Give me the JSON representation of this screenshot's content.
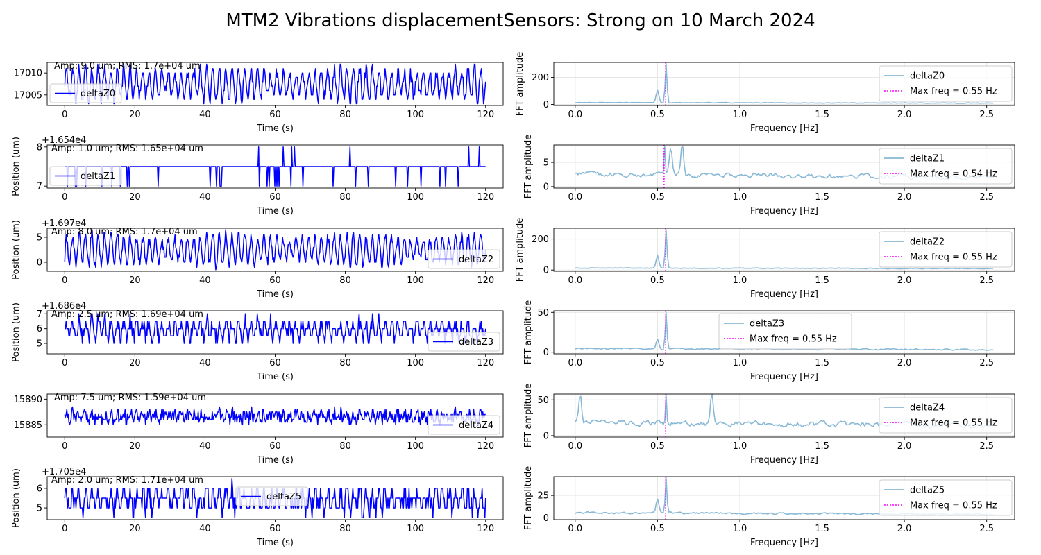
{
  "figure": {
    "title": "MTM2 Vibrations displacementSensors: Strong on 10 March 2024"
  },
  "colors": {
    "time_series": "#0000ff",
    "fft": "#88b8d6",
    "max_freq_line": "#ff00ff",
    "grid": "#e6e6e6"
  },
  "chart_data": [
    {
      "type": "line",
      "panel": "time",
      "sensor": "deltaZ0",
      "annotation": "Amp: 9.0 um; RMS: 1.7e+04 um",
      "xlabel": "Time (s)",
      "ylabel": "",
      "offset_text": "",
      "xlim": [
        -5,
        125
      ],
      "ylim": [
        17002.6,
        17012.4
      ],
      "xticks": [
        0,
        20,
        40,
        60,
        80,
        100,
        120
      ],
      "xtick_labels": [
        "0",
        "20",
        "40",
        "60",
        "80",
        "100",
        "120"
      ],
      "yticks": [
        17005,
        17010
      ],
      "ytick_labels": [
        "17005",
        "17010"
      ],
      "legend": {
        "label": "deltaZ0",
        "loc": "left"
      },
      "signal": {
        "kind": "sine",
        "center": 17007.5,
        "amp": 3.0,
        "freq": 0.55,
        "noise": 1.3,
        "min": 17003,
        "max": 17012,
        "quant": 1,
        "n": 600
      },
      "series": [
        {
          "name": "deltaZ0"
        }
      ]
    },
    {
      "type": "line",
      "panel": "fft",
      "sensor": "deltaZ0",
      "xlabel": "Frequency [Hz]",
      "ylabel": "FFT amplitude",
      "xlim": [
        -0.13,
        2.67
      ],
      "ylim": [
        -8,
        310
      ],
      "xticks": [
        0,
        0.5,
        1,
        1.5,
        2,
        2.5
      ],
      "xtick_labels": [
        "0.0",
        "0.5",
        "1.0",
        "1.5",
        "2.0",
        "2.5"
      ],
      "yticks": [
        0,
        200
      ],
      "ytick_labels": [
        "0",
        "200"
      ],
      "legend": {
        "labels": [
          "deltaZ0",
          "Max freq = 0.55 Hz"
        ],
        "loc": "right"
      },
      "max_freq": 0.55,
      "spectrum": {
        "baseline": 12,
        "noise": 8,
        "peak_freq": 0.55,
        "peak": 300,
        "secondary": [
          [
            0.5,
            90
          ]
        ],
        "n": 300
      },
      "series": [
        {
          "name": "deltaZ0"
        }
      ]
    },
    {
      "type": "line",
      "panel": "time",
      "sensor": "deltaZ1",
      "annotation": "Amp: 1.0 um; RMS: 1.65e+04 um",
      "xlabel": "Time (s)",
      "ylabel": "Position (um)",
      "offset_text": "+1.654e4",
      "xlim": [
        -5,
        125
      ],
      "ylim": [
        6.95,
        8.05
      ],
      "xticks": [
        0,
        20,
        40,
        60,
        80,
        100,
        120
      ],
      "xtick_labels": [
        "0",
        "20",
        "40",
        "60",
        "80",
        "100",
        "120"
      ],
      "yticks": [
        7,
        8
      ],
      "ytick_labels": [
        "7",
        "8"
      ],
      "legend": {
        "label": "deltaZ1",
        "loc": "left"
      },
      "signal": {
        "kind": "steps",
        "center": 7.5,
        "low": 7,
        "high": 8,
        "p_low": 0.05,
        "p_high": 0.02,
        "n": 600
      },
      "series": [
        {
          "name": "deltaZ1"
        }
      ]
    },
    {
      "type": "line",
      "panel": "fft",
      "sensor": "deltaZ1",
      "xlabel": "Frequency [Hz]",
      "ylabel": "FFT amplitude",
      "xlim": [
        -0.13,
        2.67
      ],
      "ylim": [
        -0.3,
        8.6
      ],
      "xticks": [
        0,
        0.5,
        1,
        1.5,
        2,
        2.5
      ],
      "xtick_labels": [
        "0.0",
        "0.5",
        "1.0",
        "1.5",
        "2.0",
        "2.5"
      ],
      "yticks": [
        0,
        5
      ],
      "ytick_labels": [
        "0",
        "5"
      ],
      "legend": {
        "labels": [
          "deltaZ1",
          "Max freq = 0.54 Hz"
        ],
        "loc": "right"
      },
      "max_freq": 0.54,
      "spectrum": {
        "baseline": 2.3,
        "noise": 1.6,
        "peak_freq": 0.54,
        "peak": 8.3,
        "secondary": [
          [
            0.65,
            6.5
          ],
          [
            0.58,
            5.5
          ]
        ],
        "n": 300
      },
      "series": [
        {
          "name": "deltaZ1"
        }
      ]
    },
    {
      "type": "line",
      "panel": "time",
      "sensor": "deltaZ2",
      "annotation": "Amp: 8.0 um; RMS: 1.7e+04 um",
      "xlabel": "Time (s)",
      "ylabel": "Position (um)",
      "offset_text": "+1.697e4",
      "xlim": [
        -5,
        125
      ],
      "ylim": [
        -1.8,
        6.8
      ],
      "xticks": [
        0,
        20,
        40,
        60,
        80,
        100,
        120
      ],
      "xtick_labels": [
        "0",
        "20",
        "40",
        "60",
        "80",
        "100",
        "120"
      ],
      "yticks": [
        0,
        5
      ],
      "ytick_labels": [
        "0",
        "5"
      ],
      "legend": {
        "label": "deltaZ2",
        "loc": "right"
      },
      "signal": {
        "kind": "sine",
        "center": 2.5,
        "amp": 2.6,
        "freq": 0.55,
        "noise": 0.9,
        "min": -1.5,
        "max": 6.5,
        "quant": 0.5,
        "n": 600,
        "start": 0
      },
      "series": [
        {
          "name": "deltaZ2"
        }
      ]
    },
    {
      "type": "line",
      "panel": "fft",
      "sensor": "deltaZ2",
      "xlabel": "Frequency [Hz]",
      "ylabel": "FFT amplitude",
      "xlim": [
        -0.13,
        2.67
      ],
      "ylim": [
        -8,
        270
      ],
      "xticks": [
        0,
        0.5,
        1,
        1.5,
        2,
        2.5
      ],
      "xtick_labels": [
        "0.0",
        "0.5",
        "1.0",
        "1.5",
        "2.0",
        "2.5"
      ],
      "yticks": [
        0,
        200
      ],
      "ytick_labels": [
        "0",
        "200"
      ],
      "legend": {
        "labels": [
          "deltaZ2",
          "Max freq = 0.55 Hz"
        ],
        "loc": "right"
      },
      "max_freq": 0.55,
      "spectrum": {
        "baseline": 12,
        "noise": 7,
        "peak_freq": 0.55,
        "peak": 260,
        "secondary": [
          [
            0.5,
            80
          ]
        ],
        "n": 300
      },
      "series": [
        {
          "name": "deltaZ2"
        }
      ]
    },
    {
      "type": "line",
      "panel": "time",
      "sensor": "deltaZ3",
      "annotation": "Amp: 2.5 um; RMS: 1.69e+04 um",
      "xlabel": "Time (s)",
      "ylabel": "Position (um)",
      "offset_text": "+1.686e4",
      "xlim": [
        -5,
        125
      ],
      "ylim": [
        4.3,
        7.2
      ],
      "xticks": [
        0,
        20,
        40,
        60,
        80,
        100,
        120
      ],
      "xtick_labels": [
        "0",
        "20",
        "40",
        "60",
        "80",
        "100",
        "120"
      ],
      "yticks": [
        5,
        6,
        7
      ],
      "ytick_labels": [
        "5",
        "6",
        "7"
      ],
      "legend": {
        "label": "deltaZ3",
        "loc": "right"
      },
      "signal": {
        "kind": "sine",
        "center": 5.9,
        "amp": 0.5,
        "freq": 0.55,
        "noise": 0.45,
        "min": 4.5,
        "max": 7.0,
        "quant": 0.5,
        "n": 600
      },
      "series": [
        {
          "name": "deltaZ3"
        }
      ]
    },
    {
      "type": "line",
      "panel": "fft",
      "sensor": "deltaZ3",
      "xlabel": "Frequency [Hz]",
      "ylabel": "FFT amplitude",
      "xlim": [
        -0.13,
        2.67
      ],
      "ylim": [
        -2,
        52
      ],
      "xticks": [
        0,
        0.5,
        1,
        1.5,
        2,
        2.5
      ],
      "xtick_labels": [
        "0.0",
        "0.5",
        "1.0",
        "1.5",
        "2.0",
        "2.5"
      ],
      "yticks": [
        0,
        50
      ],
      "ytick_labels": [
        "0",
        "50"
      ],
      "legend": {
        "labels": [
          "deltaZ3",
          "Max freq = 0.55 Hz"
        ],
        "loc": "center"
      },
      "max_freq": 0.55,
      "spectrum": {
        "baseline": 4,
        "noise": 3,
        "peak_freq": 0.55,
        "peak": 50,
        "secondary": [
          [
            0.5,
            13
          ]
        ],
        "n": 300
      },
      "series": [
        {
          "name": "deltaZ3"
        }
      ]
    },
    {
      "type": "line",
      "panel": "time",
      "sensor": "deltaZ4",
      "annotation": "Amp: 7.5 um; RMS: 1.59e+04 um",
      "xlabel": "Time (s)",
      "ylabel": "",
      "offset_text": "",
      "xlim": [
        -5,
        125
      ],
      "ylim": [
        15882.6,
        15891.0
      ],
      "xticks": [
        0,
        20,
        40,
        60,
        80,
        100,
        120
      ],
      "xtick_labels": [
        "0",
        "20",
        "40",
        "60",
        "80",
        "100",
        "120"
      ],
      "yticks": [
        15885,
        15890
      ],
      "ytick_labels": [
        "15885",
        "15890"
      ],
      "legend": {
        "label": "deltaZ4",
        "loc": "right"
      },
      "signal": {
        "kind": "sine",
        "center": 15886.6,
        "amp": 0.6,
        "freq": 0.55,
        "noise": 1.2,
        "min": 15883,
        "max": 15890.5,
        "quant": 0.5,
        "n": 600
      },
      "series": [
        {
          "name": "deltaZ4"
        }
      ]
    },
    {
      "type": "line",
      "panel": "fft",
      "sensor": "deltaZ4",
      "xlabel": "Frequency [Hz]",
      "ylabel": "FFT amplitude",
      "xlim": [
        -0.13,
        2.67
      ],
      "ylim": [
        -2,
        58
      ],
      "xticks": [
        0,
        0.5,
        1,
        1.5,
        2,
        2.5
      ],
      "xtick_labels": [
        "0.0",
        "0.5",
        "1.0",
        "1.5",
        "2.0",
        "2.5"
      ],
      "yticks": [
        0,
        50
      ],
      "ytick_labels": [
        "0",
        "50"
      ],
      "legend": {
        "labels": [
          "deltaZ4",
          "Max freq = 0.55 Hz"
        ],
        "loc": "right"
      },
      "max_freq": 0.55,
      "spectrum": {
        "baseline": 16,
        "noise": 14,
        "peak_freq": 0.55,
        "peak": 57,
        "secondary": [
          [
            0.83,
            42
          ],
          [
            0.03,
            40
          ]
        ],
        "n": 300
      },
      "series": [
        {
          "name": "deltaZ4"
        }
      ]
    },
    {
      "type": "line",
      "panel": "time",
      "sensor": "deltaZ5",
      "annotation": "Amp: 2.0 um; RMS: 1.71e+04 um",
      "xlabel": "Time (s)",
      "ylabel": "Position (um)",
      "offset_text": "+1.705e4",
      "xlim": [
        -5,
        125
      ],
      "ylim": [
        4.4,
        6.6
      ],
      "xticks": [
        0,
        20,
        40,
        60,
        80,
        100,
        120
      ],
      "xtick_labels": [
        "0",
        "20",
        "40",
        "60",
        "80",
        "100",
        "120"
      ],
      "yticks": [
        5,
        6
      ],
      "ytick_labels": [
        "5",
        "6"
      ],
      "legend": {
        "label": "deltaZ5",
        "loc": "center"
      },
      "signal": {
        "kind": "sine",
        "center": 5.4,
        "amp": 0.4,
        "freq": 0.55,
        "noise": 0.45,
        "min": 4.5,
        "max": 6.5,
        "quant": 0.5,
        "n": 600
      },
      "series": [
        {
          "name": "deltaZ5"
        }
      ]
    },
    {
      "type": "line",
      "panel": "fft",
      "sensor": "deltaZ5",
      "xlabel": "Frequency [Hz]",
      "ylabel": "FFT amplitude",
      "xlim": [
        -0.13,
        2.67
      ],
      "ylim": [
        -2,
        46
      ],
      "xticks": [
        0,
        0.5,
        1,
        1.5,
        2,
        2.5
      ],
      "xtick_labels": [
        "0.0",
        "0.5",
        "1.0",
        "1.5",
        "2.0",
        "2.5"
      ],
      "yticks": [
        0,
        25
      ],
      "ytick_labels": [
        "0",
        "25"
      ],
      "legend": {
        "labels": [
          "deltaZ5",
          "Max freq = 0.55 Hz"
        ],
        "loc": "right"
      },
      "max_freq": 0.55,
      "spectrum": {
        "baseline": 5,
        "noise": 3.5,
        "peak_freq": 0.55,
        "peak": 45,
        "secondary": [
          [
            0.5,
            15
          ]
        ],
        "n": 300
      },
      "series": [
        {
          "name": "deltaZ5"
        }
      ]
    }
  ]
}
